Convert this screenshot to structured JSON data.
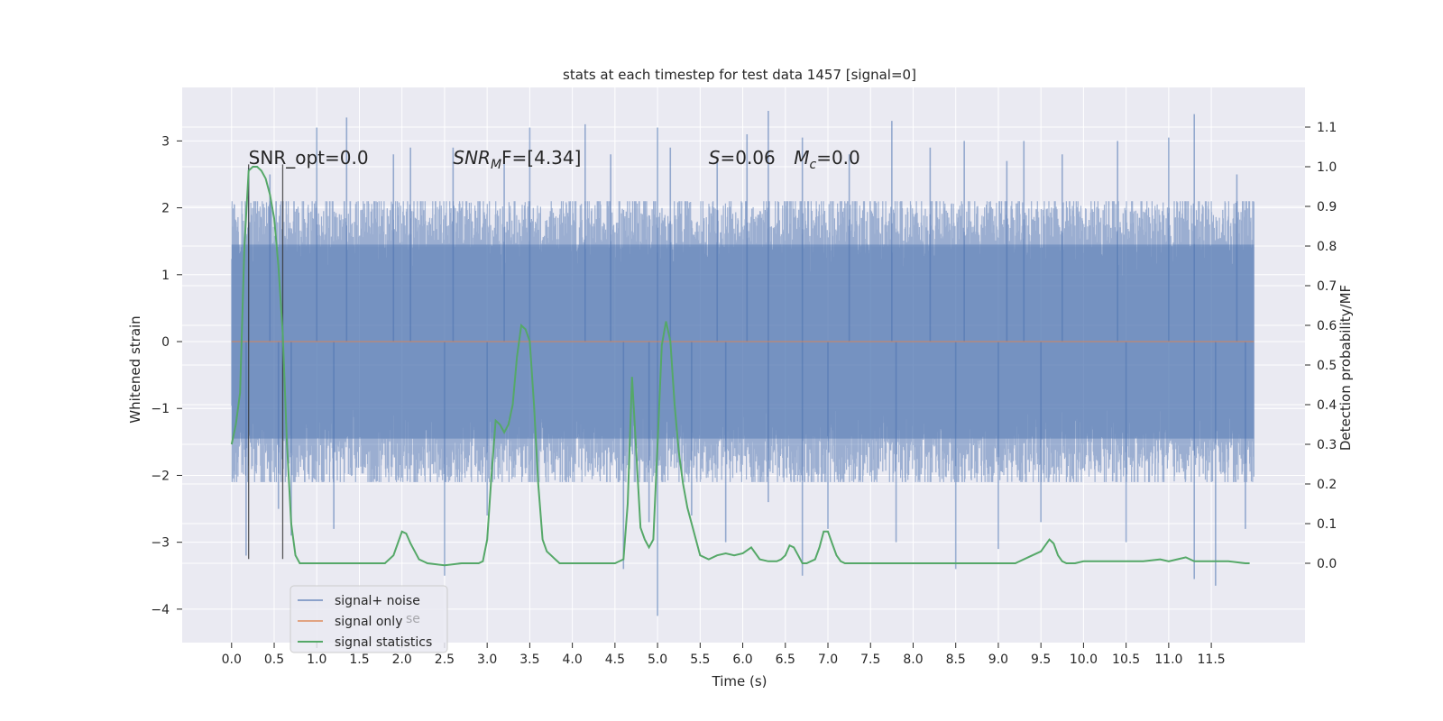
{
  "chart_data": {
    "type": "line",
    "title": "stats at each timestep for test data 1457 [signal=0]",
    "xlabel": "Time (s)",
    "ylabel": "Whitened strain",
    "ylabel_right": "Detection probability/MF",
    "xlim": [
      -0.58,
      12.6
    ],
    "ylim": [
      -4.5,
      3.8
    ],
    "ylim_right": [
      -0.2,
      1.2
    ],
    "x_ticks": [
      0.0,
      0.5,
      1.0,
      1.5,
      2.0,
      2.5,
      3.0,
      3.5,
      4.0,
      4.5,
      5.0,
      5.5,
      6.0,
      6.5,
      7.0,
      7.5,
      8.0,
      8.5,
      9.0,
      9.5,
      10.0,
      10.5,
      11.0,
      11.5
    ],
    "x_tick_labels": [
      "0.0",
      "0.5",
      "1.0",
      "1.5",
      "2.0",
      "2.5",
      "3.0",
      "3.5",
      "4.0",
      "4.5",
      "5.0",
      "5.5",
      "6.0",
      "6.5",
      "7.0",
      "7.5",
      "8.0",
      "8.5",
      "9.0",
      "9.5",
      "10.0",
      "10.5",
      "11.0",
      "11.5"
    ],
    "y_ticks": [
      -4,
      -3,
      -2,
      -1,
      0,
      1,
      2,
      3
    ],
    "y_tick_labels": [
      "−4",
      "−3",
      "−2",
      "−1",
      "0",
      "1",
      "2",
      "3"
    ],
    "y_ticks_right": [
      0.0,
      0.1,
      0.2,
      0.3,
      0.4,
      0.5,
      0.6,
      0.7,
      0.8,
      0.9,
      1.0,
      1.1
    ],
    "y_tick_labels_right": [
      "0.0",
      "0.1",
      "0.2",
      "0.3",
      "0.4",
      "0.5",
      "0.6",
      "0.7",
      "0.8",
      "0.9",
      "1.0",
      "1.1"
    ],
    "grid": true,
    "colors": {
      "background": "#eaeaf2",
      "grid": "#ffffff",
      "signal_noise": "#4c72b0",
      "signal_only": "#dd8452",
      "statistics": "#55a868",
      "markers": "#333333"
    },
    "series": [
      {
        "name": "signal+ noise",
        "axis": "left",
        "x_range": [
          0.0,
          12.0
        ],
        "typical_range": [
          -2.1,
          2.1
        ],
        "spikes_up": [
          [
            0.2,
            2.6
          ],
          [
            0.45,
            2.5
          ],
          [
            1.0,
            3.2
          ],
          [
            1.35,
            3.35
          ],
          [
            1.9,
            2.8
          ],
          [
            2.1,
            2.9
          ],
          [
            2.6,
            2.9
          ],
          [
            3.2,
            2.7
          ],
          [
            3.5,
            3.2
          ],
          [
            4.15,
            3.25
          ],
          [
            4.45,
            2.8
          ],
          [
            5.0,
            3.2
          ],
          [
            5.15,
            2.9
          ],
          [
            5.7,
            2.7
          ],
          [
            6.05,
            3.1
          ],
          [
            6.3,
            3.45
          ],
          [
            6.7,
            3.05
          ],
          [
            7.25,
            2.8
          ],
          [
            7.75,
            3.3
          ],
          [
            8.2,
            2.9
          ],
          [
            8.6,
            3.0
          ],
          [
            9.1,
            2.7
          ],
          [
            9.3,
            3.0
          ],
          [
            9.75,
            2.8
          ],
          [
            10.4,
            3.0
          ],
          [
            11.0,
            3.05
          ],
          [
            11.3,
            3.4
          ],
          [
            11.8,
            2.5
          ]
        ],
        "spikes_down": [
          [
            0.17,
            -3.2
          ],
          [
            0.55,
            -2.5
          ],
          [
            0.7,
            -2.9
          ],
          [
            1.2,
            -2.8
          ],
          [
            2.5,
            -3.5
          ],
          [
            3.0,
            -2.6
          ],
          [
            4.6,
            -3.4
          ],
          [
            4.9,
            -2.7
          ],
          [
            5.0,
            -4.1
          ],
          [
            5.4,
            -2.6
          ],
          [
            5.8,
            -3.0
          ],
          [
            6.3,
            -2.4
          ],
          [
            6.7,
            -3.5
          ],
          [
            7.0,
            -2.8
          ],
          [
            7.8,
            -3.0
          ],
          [
            8.5,
            -3.4
          ],
          [
            9.0,
            -3.1
          ],
          [
            9.5,
            -2.7
          ],
          [
            10.5,
            -3.0
          ],
          [
            11.3,
            -3.55
          ],
          [
            11.55,
            -3.65
          ],
          [
            11.9,
            -2.8
          ]
        ]
      },
      {
        "name": "signal only",
        "axis": "left",
        "x": [
          0.0,
          12.0
        ],
        "y": [
          0.0,
          0.0
        ]
      },
      {
        "name": "signal statistics",
        "axis": "right",
        "x": [
          0.0,
          0.05,
          0.1,
          0.15,
          0.2,
          0.25,
          0.3,
          0.35,
          0.4,
          0.45,
          0.5,
          0.55,
          0.6,
          0.65,
          0.7,
          0.75,
          0.8,
          0.85,
          0.9,
          1.0,
          1.2,
          1.5,
          1.8,
          1.9,
          1.95,
          2.0,
          2.05,
          2.1,
          2.15,
          2.2,
          2.3,
          2.5,
          2.7,
          2.9,
          2.95,
          3.0,
          3.05,
          3.1,
          3.15,
          3.2,
          3.25,
          3.3,
          3.35,
          3.4,
          3.45,
          3.5,
          3.55,
          3.6,
          3.65,
          3.7,
          3.75,
          3.8,
          3.85,
          3.9,
          4.0,
          4.1,
          4.2,
          4.3,
          4.5,
          4.6,
          4.65,
          4.7,
          4.75,
          4.8,
          4.85,
          4.9,
          4.95,
          5.0,
          5.05,
          5.1,
          5.15,
          5.2,
          5.25,
          5.3,
          5.35,
          5.4,
          5.45,
          5.5,
          5.6,
          5.7,
          5.8,
          5.9,
          6.0,
          6.1,
          6.2,
          6.3,
          6.4,
          6.45,
          6.5,
          6.55,
          6.6,
          6.65,
          6.7,
          6.75,
          6.8,
          6.85,
          6.9,
          6.95,
          7.0,
          7.05,
          7.1,
          7.15,
          7.2,
          7.25,
          7.3,
          7.4,
          7.5,
          7.7,
          8.0,
          8.3,
          8.5,
          8.7,
          9.0,
          9.2,
          9.4,
          9.5,
          9.6,
          9.65,
          9.7,
          9.75,
          9.8,
          9.9,
          10.0,
          10.1,
          10.3,
          10.5,
          10.7,
          10.9,
          11.0,
          11.1,
          11.2,
          11.3,
          11.5,
          11.7,
          11.9,
          11.95
        ],
        "y": [
          0.3,
          0.35,
          0.43,
          0.8,
          0.99,
          1.0,
          1.0,
          0.99,
          0.97,
          0.93,
          0.87,
          0.75,
          0.58,
          0.3,
          0.1,
          0.02,
          0.0,
          0.0,
          0.0,
          0.0,
          0.0,
          0.0,
          0.0,
          0.02,
          0.05,
          0.08,
          0.075,
          0.05,
          0.03,
          0.01,
          0.0,
          -0.005,
          0.0,
          0.0,
          0.005,
          0.06,
          0.22,
          0.36,
          0.35,
          0.33,
          0.35,
          0.4,
          0.52,
          0.6,
          0.59,
          0.56,
          0.4,
          0.2,
          0.06,
          0.03,
          0.02,
          0.01,
          0.0,
          0.0,
          0.0,
          0.0,
          0.0,
          0.0,
          0.0,
          0.01,
          0.15,
          0.47,
          0.28,
          0.09,
          0.06,
          0.04,
          0.06,
          0.3,
          0.55,
          0.61,
          0.56,
          0.4,
          0.28,
          0.2,
          0.14,
          0.1,
          0.06,
          0.02,
          0.01,
          0.02,
          0.025,
          0.02,
          0.025,
          0.04,
          0.01,
          0.005,
          0.005,
          0.01,
          0.02,
          0.045,
          0.04,
          0.02,
          0.0,
          0.0,
          0.005,
          0.01,
          0.04,
          0.08,
          0.08,
          0.05,
          0.02,
          0.005,
          0.0,
          0.0,
          0.0,
          0.0,
          0.0,
          0.0,
          0.0,
          0.0,
          0.0,
          0.0,
          0.0,
          0.0,
          0.02,
          0.03,
          0.06,
          0.05,
          0.02,
          0.005,
          0.0,
          0.0,
          0.005,
          0.005,
          0.005,
          0.005,
          0.005,
          0.01,
          0.005,
          0.01,
          0.015,
          0.005,
          0.005,
          0.005,
          0.0,
          0.0
        ]
      }
    ],
    "vertical_markers": [
      {
        "x": 0.2,
        "y_range": [
          -3.25,
          2.65
        ]
      },
      {
        "x": 0.6,
        "y_range": [
          -3.25,
          2.65
        ]
      }
    ],
    "annotations": [
      {
        "text": "SNR_opt=0.0",
        "x": 0.2,
        "y": 2.75,
        "italic": false
      },
      {
        "text": "SNR",
        "x": 2.6,
        "y": 2.75,
        "italic": true,
        "subscript": "M",
        "suffix": "F=[4.34]"
      },
      {
        "text": "S",
        "x": 5.6,
        "y": 2.75,
        "italic": true,
        "suffix": "=0.06"
      },
      {
        "text": "M",
        "x": 6.6,
        "y": 2.75,
        "italic": true,
        "subscript": "c",
        "suffix": "=0.0"
      }
    ],
    "legend": {
      "placement": "lower-left",
      "entries": [
        "signal+ noise",
        "signal only",
        "signal statistics"
      ],
      "ghost_text": "se"
    }
  }
}
